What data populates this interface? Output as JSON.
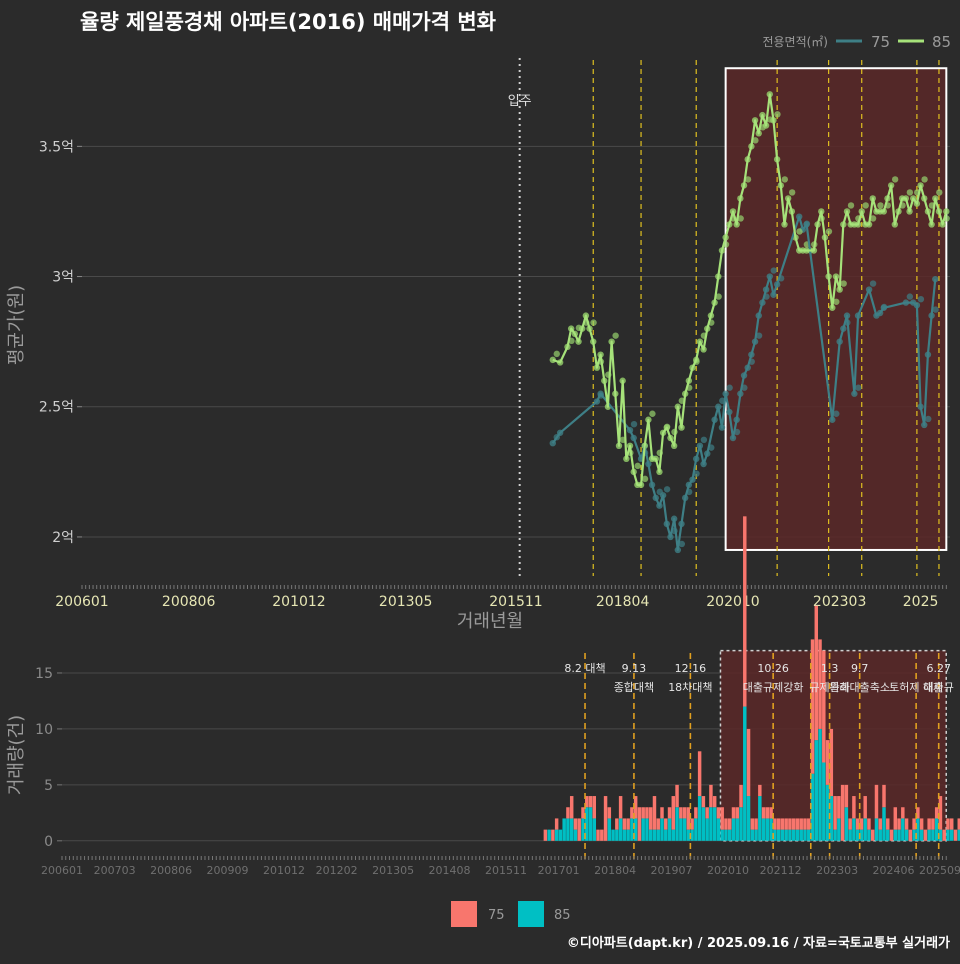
{
  "title": "율량 제일풍경채 아파트(2016) 매매가격 변화",
  "footer": "©디아파트(dapt.kr) / 2025.09.16 / 자료=국토교통부 실거래가",
  "colors": {
    "background": "#2b2b2b",
    "grid": "#4a4a4a",
    "series_75": "#3e7f86",
    "series_85": "#a6e27a",
    "point_85": "#97d36d",
    "bar_75": "#f8766d",
    "bar_85": "#00bfc4",
    "policy_line": "#e0c020",
    "policy_line_vol": "#e0a020",
    "region_fill": "#5a2828",
    "region_border": "#ffffff",
    "movein_line": "#cfcfcf"
  },
  "chart_data": [
    {
      "type": "line",
      "title": "율량 제일풍경채 아파트(2016) 매매가격 변화",
      "xlabel": "거래년월",
      "ylabel": "평균가(원)",
      "x_range": [
        "2006-01",
        "2025-09"
      ],
      "ylim": [
        1.85,
        3.87
      ],
      "x_ticks": [
        "200601",
        "200806",
        "201012",
        "201305",
        "201511",
        "201804",
        "202010",
        "202303",
        "2025"
      ],
      "y_ticks": [
        {
          "value": 2.0,
          "label": "2억"
        },
        {
          "value": 2.5,
          "label": "2.5억"
        },
        {
          "value": 3.0,
          "label": "3억"
        },
        {
          "value": 3.5,
          "label": "3.5억"
        }
      ],
      "legend": {
        "title": "전용면적(㎡)",
        "position": "top-right",
        "entries": [
          "75",
          "85"
        ]
      },
      "annotations": {
        "movein": {
          "date": "2015-12",
          "label": "입주"
        },
        "policy_lines": [
          "2017-08",
          "2018-09",
          "2019-12",
          "2021-10",
          "2022-12",
          "2023-09",
          "2024-12",
          "2025-06"
        ],
        "highlight_region": {
          "start": "2020-08",
          "end": "2025-08",
          "ymin": 1.95,
          "ymax": 3.8
        }
      },
      "series": [
        {
          "name": "75",
          "x": [
            "2016-09",
            "2016-11",
            "2017-09",
            "2017-10",
            "2018-06",
            "2018-07",
            "2018-09",
            "2018-10",
            "2018-11",
            "2018-12",
            "2019-01",
            "2019-02",
            "2019-03",
            "2019-04",
            "2019-05",
            "2019-06",
            "2019-07",
            "2019-08",
            "2019-09",
            "2019-10",
            "2019-11",
            "2019-12",
            "2020-01",
            "2020-02",
            "2020-03",
            "2020-05",
            "2020-06",
            "2020-07",
            "2020-08",
            "2020-09",
            "2020-10",
            "2020-11",
            "2020-12",
            "2021-01",
            "2021-02",
            "2021-03",
            "2021-04",
            "2021-05",
            "2021-06",
            "2021-07",
            "2021-08",
            "2021-09",
            "2021-10",
            "2022-04",
            "2022-05",
            "2022-06",
            "2023-01",
            "2023-03",
            "2023-04",
            "2023-05",
            "2023-07",
            "2023-08",
            "2023-11",
            "2024-01",
            "2024-02",
            "2024-03",
            "2024-09",
            "2024-11",
            "2024-12",
            "2025-01",
            "2025-02",
            "2025-03",
            "2025-04",
            "2025-05"
          ],
          "values": [
            2.36,
            2.4,
            2.52,
            2.55,
            2.41,
            2.38,
            2.3,
            2.35,
            2.28,
            2.2,
            2.15,
            2.12,
            2.16,
            2.05,
            2.0,
            2.07,
            1.95,
            2.05,
            2.15,
            2.2,
            2.22,
            2.3,
            2.35,
            2.28,
            2.32,
            2.45,
            2.5,
            2.42,
            2.55,
            2.48,
            2.38,
            2.45,
            2.55,
            2.62,
            2.65,
            2.7,
            2.75,
            2.85,
            2.9,
            2.95,
            3.0,
            2.93,
            2.97,
            3.23,
            3.18,
            3.2,
            2.45,
            2.75,
            2.8,
            2.85,
            2.55,
            2.85,
            2.95,
            2.85,
            2.86,
            2.88,
            2.9,
            2.9,
            2.89,
            2.5,
            2.43,
            2.7,
            2.85,
            2.99
          ]
        },
        {
          "name": "85",
          "x": [
            "2016-09",
            "2016-11",
            "2017-01",
            "2017-02",
            "2017-03",
            "2017-04",
            "2017-05",
            "2017-06",
            "2017-07",
            "2017-08",
            "2017-09",
            "2017-10",
            "2017-11",
            "2017-12",
            "2018-01",
            "2018-02",
            "2018-03",
            "2018-04",
            "2018-05",
            "2018-06",
            "2018-07",
            "2018-08",
            "2018-09",
            "2018-10",
            "2018-11",
            "2018-12",
            "2019-01",
            "2019-02",
            "2019-03",
            "2019-04",
            "2019-05",
            "2019-06",
            "2019-07",
            "2019-08",
            "2019-09",
            "2019-10",
            "2019-11",
            "2019-12",
            "2020-01",
            "2020-02",
            "2020-03",
            "2020-04",
            "2020-05",
            "2020-06",
            "2020-07",
            "2020-08",
            "2020-09",
            "2020-10",
            "2020-11",
            "2020-12",
            "2021-01",
            "2021-02",
            "2021-03",
            "2021-04",
            "2021-05",
            "2021-06",
            "2021-07",
            "2021-08",
            "2021-09",
            "2021-10",
            "2021-11",
            "2021-12",
            "2022-01",
            "2022-02",
            "2022-03",
            "2022-04",
            "2022-05",
            "2022-06",
            "2022-07",
            "2022-08",
            "2022-09",
            "2022-10",
            "2022-11",
            "2022-12",
            "2023-01",
            "2023-02",
            "2023-03",
            "2023-04",
            "2023-05",
            "2023-06",
            "2023-07",
            "2023-08",
            "2023-09",
            "2023-10",
            "2023-11",
            "2023-12",
            "2024-01",
            "2024-02",
            "2024-03",
            "2024-04",
            "2024-05",
            "2024-06",
            "2024-07",
            "2024-08",
            "2024-09",
            "2024-10",
            "2024-11",
            "2024-12",
            "2025-01",
            "2025-02",
            "2025-03",
            "2025-04",
            "2025-05",
            "2025-06",
            "2025-07",
            "2025-08"
          ],
          "values": [
            2.68,
            2.67,
            2.73,
            2.8,
            2.78,
            2.75,
            2.8,
            2.85,
            2.8,
            2.75,
            2.65,
            2.7,
            2.6,
            2.5,
            2.75,
            2.55,
            2.35,
            2.6,
            2.3,
            2.35,
            2.25,
            2.2,
            2.2,
            2.35,
            2.45,
            2.3,
            2.3,
            2.25,
            2.4,
            2.42,
            2.38,
            2.35,
            2.5,
            2.42,
            2.55,
            2.6,
            2.65,
            2.68,
            2.75,
            2.72,
            2.8,
            2.85,
            2.9,
            3.0,
            3.1,
            3.15,
            3.2,
            3.25,
            3.2,
            3.3,
            3.35,
            3.45,
            3.5,
            3.6,
            3.55,
            3.62,
            3.58,
            3.7,
            3.6,
            3.45,
            3.35,
            3.2,
            3.3,
            3.25,
            3.15,
            3.1,
            3.1,
            3.1,
            3.1,
            3.1,
            3.2,
            3.25,
            3.15,
            3.0,
            2.88,
            3.0,
            2.95,
            3.2,
            3.25,
            3.2,
            3.2,
            3.2,
            3.25,
            3.2,
            3.2,
            3.3,
            3.25,
            3.25,
            3.25,
            3.3,
            3.35,
            3.2,
            3.25,
            3.3,
            3.3,
            3.25,
            3.3,
            3.28,
            3.35,
            3.3,
            3.25,
            3.2,
            3.3,
            3.25,
            3.2,
            3.25
          ]
        }
      ]
    },
    {
      "type": "bar",
      "title": "",
      "xlabel": "",
      "ylabel": "거래량(건)",
      "x_range": [
        "2006-01",
        "2025-09"
      ],
      "ylim": [
        -1,
        17.5
      ],
      "x_ticks": [
        "200601",
        "200703",
        "200806",
        "200909",
        "201012",
        "201202",
        "201305",
        "201408",
        "201511",
        "201701",
        "201804",
        "201907",
        "202010",
        "202112",
        "202303",
        "202406",
        "202509"
      ],
      "y_ticks": [
        0,
        5,
        10,
        15
      ],
      "legend": {
        "position": "bottom",
        "entries": [
          "75",
          "85"
        ]
      },
      "annotations": {
        "policy_lines": [
          {
            "date": "2017-08",
            "label1": "8.2 대책",
            "label2": ""
          },
          {
            "date": "2018-09",
            "label1": "9.13",
            "label2": "종합대책"
          },
          {
            "date": "2019-12",
            "label1": "12.16",
            "label2": "18차대책"
          },
          {
            "date": "2021-10",
            "label1": "10.26",
            "label2": "대출규제강화"
          },
          {
            "date": "2022-08",
            "label1": "",
            "label2": ""
          },
          {
            "date": "2023-01",
            "label1": "1.3",
            "label2": "규제완화"
          },
          {
            "date": "2023-09",
            "label1": "9.7",
            "label2": "특례대출축소"
          },
          {
            "date": "2024-12",
            "label1": "",
            "label2": "토허제 해제"
          },
          {
            "date": "2025-06",
            "label1": "6.27",
            "label2": "대출규"
          }
        ],
        "highlight_region": {
          "start": "2020-08",
          "end": "2025-08",
          "ymin": 0,
          "ymax": 17
        }
      },
      "series": [
        {
          "name": "75",
          "start": "2016-09",
          "values": [
            1,
            0,
            1,
            1,
            0,
            0,
            1,
            2,
            1,
            2,
            1,
            1,
            1,
            2,
            1,
            1,
            4,
            1,
            0,
            1,
            2,
            1,
            1,
            1,
            2,
            3,
            1,
            1,
            2,
            3,
            1,
            1,
            1,
            1,
            3,
            2,
            1,
            1,
            2,
            1,
            1,
            4,
            1,
            1,
            2,
            1,
            1,
            2,
            1,
            1,
            1,
            1,
            2,
            17,
            6,
            1,
            1,
            1,
            1,
            1,
            1,
            1,
            1,
            1,
            1,
            1,
            1,
            1,
            1,
            1,
            1,
            12,
            12,
            8,
            10,
            4,
            6,
            3,
            2,
            5,
            2,
            1,
            2,
            1,
            1,
            2,
            1,
            1,
            3,
            1,
            2,
            1,
            1,
            2,
            1,
            1,
            1,
            1,
            1,
            1,
            1,
            1,
            1,
            1,
            1,
            3,
            1,
            1,
            1,
            1,
            1,
            1,
            1,
            1,
            1,
            1,
            1,
            1,
            1,
            1,
            2,
            2,
            3,
            1,
            3,
            1,
            2,
            3,
            1,
            2,
            1,
            2,
            1,
            1,
            1,
            1,
            1,
            1,
            1,
            1,
            1,
            1,
            1,
            1,
            1,
            1,
            2,
            1,
            1,
            1,
            1,
            1,
            2,
            2,
            1,
            1,
            2,
            2,
            1,
            1,
            1,
            1,
            1,
            1
          ]
        },
        {
          "name": "85",
          "start": "2016-09",
          "values": [
            0,
            1,
            0,
            1,
            1,
            2,
            2,
            2,
            1,
            0,
            2,
            3,
            3,
            2,
            0,
            0,
            0,
            2,
            1,
            1,
            2,
            1,
            1,
            2,
            2,
            0,
            2,
            2,
            1,
            1,
            1,
            2,
            1,
            2,
            1,
            3,
            2,
            2,
            1,
            1,
            2,
            4,
            3,
            2,
            3,
            3,
            2,
            1,
            1,
            1,
            2,
            2,
            3,
            12,
            4,
            1,
            1,
            4,
            2,
            2,
            2,
            1,
            1,
            1,
            1,
            1,
            1,
            1,
            1,
            1,
            1,
            6,
            9,
            10,
            7,
            5,
            4,
            1,
            2,
            0,
            3,
            1,
            2,
            1,
            1,
            2,
            1,
            0,
            2,
            1,
            3,
            1,
            0,
            1,
            1,
            2,
            1,
            0,
            1,
            2,
            1,
            0,
            1,
            1,
            2,
            1,
            0,
            1,
            1,
            0,
            1,
            1,
            2,
            1,
            0,
            1,
            1,
            1,
            1,
            2,
            1,
            2,
            1,
            2,
            2,
            1,
            1,
            2,
            1,
            0,
            2,
            1,
            1,
            2,
            1,
            1,
            2,
            1,
            0,
            1,
            2,
            1,
            1,
            0,
            1,
            2,
            2,
            1,
            1,
            2,
            3,
            1,
            1,
            2,
            3,
            1,
            2,
            2,
            1,
            1,
            2,
            1,
            3,
            1
          ]
        }
      ]
    }
  ]
}
